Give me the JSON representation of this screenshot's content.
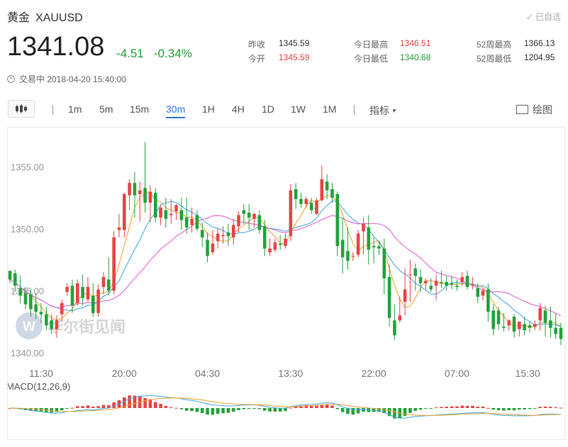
{
  "header": {
    "name": "黄金",
    "symbol": "XAUUSD",
    "added_label": "✓ 已自选"
  },
  "quote": {
    "price": "1341.08",
    "change": "-4.51",
    "change_pct": "-0.34%",
    "status": "交易中 2018-04-20 15:40:00"
  },
  "stats": {
    "prev_close_label": "昨收",
    "prev_close": "1345.59",
    "open_label": "今开",
    "open": "1345.59",
    "high_label": "今日最高",
    "high": "1346.51",
    "low_label": "今日最低",
    "low": "1340.68",
    "w52_high_label": "52周最高",
    "w52_high": "1366.13",
    "w52_low_label": "52周最低",
    "w52_low": "1204.95"
  },
  "toolbar": {
    "timeframes": [
      "1m",
      "5m",
      "15m",
      "30m",
      "1H",
      "4H",
      "1D",
      "1W",
      "1M"
    ],
    "active": "30m",
    "indicator_label": "指标",
    "draw_label": "绘图"
  },
  "watermark": "华尔街见闻",
  "colors": {
    "up": "#e94343",
    "down": "#23a23a",
    "ma1": "#f0a030",
    "ma2": "#3ea8e6",
    "ma3": "#e45ad0",
    "active": "#2c7be5"
  },
  "chart_data": {
    "type": "candlestick",
    "y_ticks": [
      "1355.00",
      "1350.00",
      "1345.00",
      "1340.00"
    ],
    "y_tick_values": [
      1355,
      1350,
      1345,
      1340
    ],
    "ylim": [
      1339.3,
      1357.6
    ],
    "x_ticks": [
      "11:30",
      "20:00",
      "04:30",
      "13:30",
      "22:00",
      "07:00",
      "15:30"
    ],
    "x_tick_index": [
      6,
      22,
      38,
      54,
      70,
      86,
      102
    ],
    "candles": [
      [
        1346.6,
        1346.6,
        1345.9,
        1345.6
      ],
      [
        1346.4,
        1346.7,
        1345.4,
        1344.9
      ],
      [
        1345.2,
        1346.2,
        1344.6,
        1344.0
      ],
      [
        1344.8,
        1345.3,
        1343.9,
        1343.5
      ],
      [
        1344.7,
        1345.1,
        1343.5,
        1342.9
      ],
      [
        1343.9,
        1344.8,
        1343.3,
        1342.7
      ],
      [
        1343.3,
        1344.0,
        1343.1,
        1342.4
      ],
      [
        1343.1,
        1343.7,
        1342.2,
        1341.8
      ],
      [
        1342.6,
        1343.1,
        1341.9,
        1341.5
      ],
      [
        1341.9,
        1343.0,
        1342.6,
        1341.2
      ],
      [
        1343.1,
        1344.3,
        1344.0,
        1342.5
      ],
      [
        1344.9,
        1345.6,
        1345.3,
        1344.6
      ],
      [
        1345.4,
        1345.9,
        1343.8,
        1343.2
      ],
      [
        1344.0,
        1345.9,
        1345.6,
        1343.8
      ],
      [
        1345.3,
        1346.3,
        1344.4,
        1343.8
      ],
      [
        1344.3,
        1346.1,
        1345.3,
        1344.1
      ],
      [
        1344.6,
        1345.6,
        1343.2,
        1342.9
      ],
      [
        1343.2,
        1345.5,
        1345.1,
        1342.9
      ],
      [
        1345.3,
        1346.5,
        1346.1,
        1344.7
      ],
      [
        1345.9,
        1347.7,
        1345.0,
        1344.6
      ],
      [
        1345.0,
        1349.8,
        1349.3,
        1344.7
      ],
      [
        1349.9,
        1351.2,
        1350.1,
        1349.3
      ],
      [
        1349.9,
        1352.9,
        1352.8,
        1349.3
      ],
      [
        1352.7,
        1354.0,
        1353.7,
        1351.5
      ],
      [
        1353.7,
        1354.6,
        1352.7,
        1350.9
      ],
      [
        1352.8,
        1353.8,
        1353.1,
        1350.6
      ],
      [
        1353.3,
        1357.0,
        1352.1,
        1351.3
      ],
      [
        1352.1,
        1353.5,
        1353.0,
        1350.5
      ],
      [
        1352.9,
        1353.3,
        1350.9,
        1350.5
      ],
      [
        1350.9,
        1351.9,
        1351.7,
        1350.3
      ],
      [
        1351.5,
        1352.5,
        1350.8,
        1350.1
      ],
      [
        1351.1,
        1352.4,
        1351.2,
        1350.4
      ],
      [
        1351.4,
        1352.0,
        1351.9,
        1350.7
      ],
      [
        1351.5,
        1352.5,
        1350.7,
        1349.9
      ],
      [
        1350.9,
        1352.5,
        1350.1,
        1349.6
      ],
      [
        1350.3,
        1351.7,
        1350.8,
        1349.7
      ],
      [
        1351.1,
        1351.5,
        1350.0,
        1349.8
      ],
      [
        1349.9,
        1350.5,
        1349.3,
        1348.5
      ],
      [
        1349.1,
        1349.7,
        1347.8,
        1347.3
      ],
      [
        1348.1,
        1349.9,
        1348.8,
        1347.9
      ],
      [
        1349.0,
        1350.0,
        1349.6,
        1348.4
      ],
      [
        1349.4,
        1350.2,
        1349.5,
        1348.8
      ],
      [
        1349.7,
        1350.4,
        1349.4,
        1348.6
      ],
      [
        1349.3,
        1350.8,
        1350.3,
        1348.7
      ],
      [
        1350.2,
        1351.4,
        1351.1,
        1349.7
      ],
      [
        1351.5,
        1352.0,
        1351.2,
        1350.4
      ],
      [
        1351.3,
        1352.0,
        1350.9,
        1349.9
      ],
      [
        1350.8,
        1351.3,
        1351.2,
        1350.1
      ],
      [
        1351.1,
        1351.5,
        1349.9,
        1349.6
      ],
      [
        1350.2,
        1350.7,
        1348.4,
        1347.8
      ],
      [
        1348.1,
        1349.2,
        1348.4,
        1347.8
      ],
      [
        1348.3,
        1349.2,
        1348.9,
        1348.1
      ],
      [
        1348.8,
        1349.5,
        1348.7,
        1348.3
      ],
      [
        1348.6,
        1349.6,
        1349.2,
        1348.4
      ],
      [
        1349.4,
        1353.6,
        1353.1,
        1349.0
      ],
      [
        1353.2,
        1353.7,
        1352.4,
        1351.6
      ],
      [
        1352.4,
        1352.9,
        1352.0,
        1351.7
      ],
      [
        1352.0,
        1352.6,
        1352.4,
        1351.7
      ],
      [
        1352.1,
        1352.5,
        1351.5,
        1351.2
      ],
      [
        1351.2,
        1352.5,
        1352.3,
        1351.1
      ],
      [
        1352.3,
        1355.1,
        1354.0,
        1352.2
      ],
      [
        1353.8,
        1354.4,
        1353.1,
        1352.4
      ],
      [
        1353.2,
        1353.7,
        1352.5,
        1352.1
      ],
      [
        1352.8,
        1353.0,
        1348.6,
        1347.8
      ],
      [
        1349.1,
        1350.9,
        1347.7,
        1346.4
      ],
      [
        1348.2,
        1350.1,
        1347.4,
        1346.7
      ],
      [
        1347.8,
        1348.1,
        1347.8,
        1347.4
      ],
      [
        1347.9,
        1349.9,
        1349.6,
        1347.7
      ],
      [
        1349.8,
        1350.9,
        1350.4,
        1347.9
      ],
      [
        1350.1,
        1351.1,
        1348.3,
        1347.1
      ],
      [
        1348.6,
        1349.3,
        1348.5,
        1347.2
      ],
      [
        1348.6,
        1349.0,
        1348.4,
        1347.9
      ],
      [
        1348.4,
        1349.2,
        1346.0,
        1344.7
      ],
      [
        1346.1,
        1347.1,
        1342.8,
        1342.1
      ],
      [
        1342.6,
        1343.9,
        1341.4,
        1341.0
      ],
      [
        1342.6,
        1344.5,
        1343.0,
        1342.4
      ],
      [
        1344.1,
        1346.8,
        1345.1,
        1343.0
      ],
      [
        1346.3,
        1347.5,
        1346.3,
        1344.1
      ],
      [
        1346.8,
        1347.2,
        1346.2,
        1345.0
      ],
      [
        1346.1,
        1346.7,
        1345.6,
        1344.9
      ],
      [
        1345.6,
        1346.0,
        1345.8,
        1345.1
      ],
      [
        1345.4,
        1346.0,
        1345.1,
        1344.9
      ],
      [
        1345.4,
        1346.3,
        1345.8,
        1344.2
      ],
      [
        1345.7,
        1346.6,
        1345.6,
        1345.2
      ],
      [
        1345.7,
        1346.2,
        1345.4,
        1345.0
      ],
      [
        1345.6,
        1346.2,
        1345.5,
        1345.1
      ],
      [
        1345.4,
        1345.9,
        1345.3,
        1345.0
      ],
      [
        1345.7,
        1346.5,
        1346.1,
        1345.4
      ],
      [
        1346.2,
        1346.6,
        1345.3,
        1345.1
      ],
      [
        1345.4,
        1346.1,
        1345.5,
        1345.1
      ],
      [
        1345.2,
        1345.6,
        1344.5,
        1344.0
      ],
      [
        1344.6,
        1345.2,
        1345.0,
        1344.2
      ],
      [
        1345.1,
        1345.6,
        1343.3,
        1342.5
      ],
      [
        1343.4,
        1343.9,
        1341.9,
        1341.4
      ],
      [
        1343.4,
        1343.7,
        1342.3,
        1341.8
      ],
      [
        1342.1,
        1343.2,
        1342.0,
        1341.7
      ],
      [
        1342.2,
        1342.7,
        1342.6,
        1341.8
      ],
      [
        1342.9,
        1343.1,
        1341.7,
        1341.2
      ],
      [
        1341.9,
        1342.5,
        1342.5,
        1341.3
      ],
      [
        1342.3,
        1342.9,
        1341.8,
        1341.4
      ],
      [
        1342.2,
        1342.5,
        1342.0,
        1341.6
      ],
      [
        1342.1,
        1342.6,
        1342.3,
        1341.8
      ],
      [
        1342.6,
        1344.0,
        1343.6,
        1341.8
      ],
      [
        1343.4,
        1343.8,
        1342.4,
        1341.3
      ],
      [
        1342.6,
        1343.7,
        1342.0,
        1341.2
      ],
      [
        1342.0,
        1343.2,
        1341.5,
        1341.1
      ],
      [
        1342.0,
        1342.4,
        1341.1,
        1340.6
      ]
    ],
    "macd_label": "MACD(12,26,9)"
  }
}
